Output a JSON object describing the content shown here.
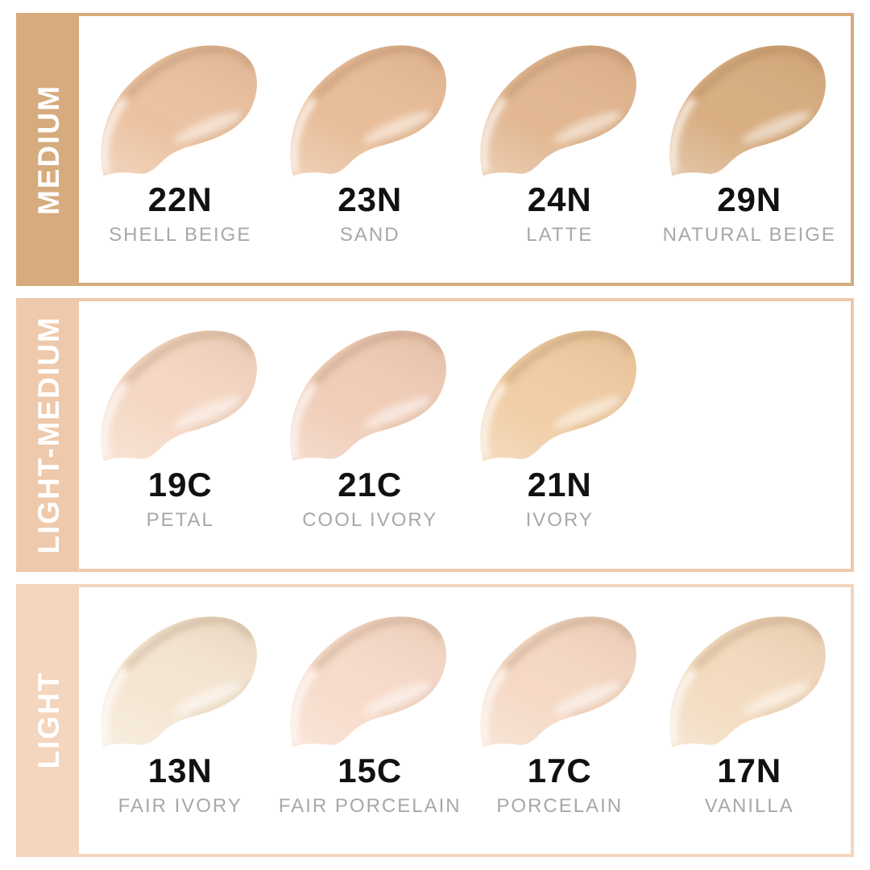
{
  "page": {
    "background": "#ffffff",
    "description": "Foundation shade chart with three depth groups"
  },
  "text_colors": {
    "code": "#111111",
    "name": "#a8a8a8",
    "sidebar_label": "#ffffff"
  },
  "sections": [
    {
      "label": "MEDIUM",
      "accent": "#d6ab7d",
      "shades": [
        {
          "code": "22N",
          "name": "SHELL BEIGE",
          "color": "#ebc2a1"
        },
        {
          "code": "23N",
          "name": "SAND",
          "color": "#e8bd99"
        },
        {
          "code": "24N",
          "name": "LATTE",
          "color": "#e2b791"
        },
        {
          "code": "29N",
          "name": "NATURAL BEIGE",
          "color": "#d8ae82"
        }
      ]
    },
    {
      "label": "LIGHT-MEDIUM",
      "accent": "#eec9ab",
      "shades": [
        {
          "code": "19C",
          "name": "PETAL",
          "color": "#f5d8c4"
        },
        {
          "code": "21C",
          "name": "COOL IVORY",
          "color": "#f0cdb8"
        },
        {
          "code": "21N",
          "name": "IVORY",
          "color": "#f0cda4"
        }
      ]
    },
    {
      "label": "LIGHT",
      "accent": "#f4d5bd",
      "shades": [
        {
          "code": "13N",
          "name": "FAIR IVORY",
          "color": "#f5e6d2"
        },
        {
          "code": "15C",
          "name": "FAIR PORCELAIN",
          "color": "#f7dbca"
        },
        {
          "code": "17C",
          "name": "PORCELAIN",
          "color": "#f5d9c5"
        },
        {
          "code": "17N",
          "name": "VANILLA",
          "color": "#f3dbbf"
        }
      ]
    }
  ]
}
